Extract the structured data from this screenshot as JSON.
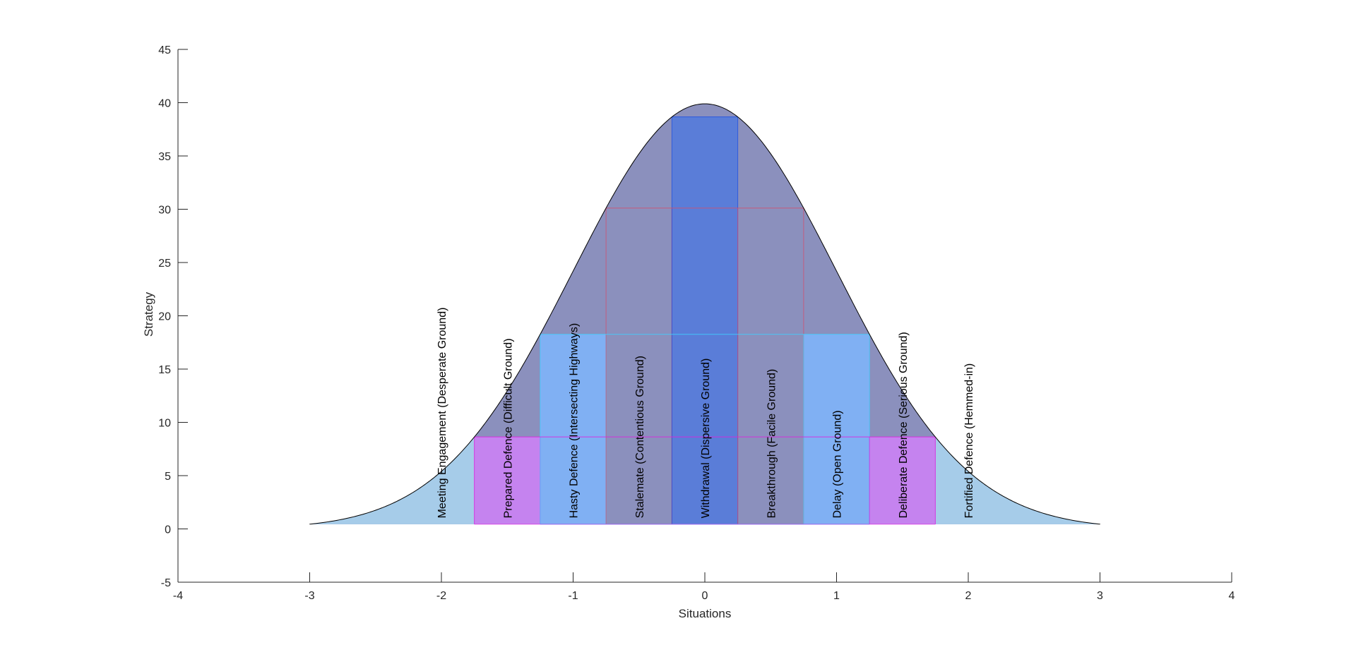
{
  "chart_data": {
    "type": "area",
    "title": "",
    "xlabel": "Situations",
    "ylabel": "Strategy",
    "xlim": [
      -4,
      4
    ],
    "ylim": [
      -5,
      45
    ],
    "x_ticks": [
      -4,
      -3,
      -2,
      -1,
      0,
      1,
      2,
      3,
      4
    ],
    "y_ticks": [
      -5,
      0,
      5,
      10,
      15,
      20,
      25,
      30,
      35,
      40,
      45
    ],
    "grid": false,
    "curve": {
      "description": "normal density scaled by 100 (mean 0, sd 1), plotted from x=-3 to x=3, baseline at y=0.44",
      "x_range": [
        -3,
        3
      ],
      "peak_y": 39.9,
      "baseline_y": 0.44
    },
    "bands": [
      {
        "label": "Meeting Engagement (Desperate Ground)",
        "x_range": [
          -3,
          -1.75
        ],
        "level": 0.44,
        "color": "#a6cce9",
        "edge": "#a6cce9"
      },
      {
        "label": "Prepared Defence (Difficult Ground)",
        "x_range": [
          -1.75,
          -1.25
        ],
        "level": 8.63,
        "color": "#c583ef",
        "edge": "#e020e0"
      },
      {
        "label": "Hasty Defence (Intersecting Highways)",
        "x_range": [
          -1.25,
          -0.75
        ],
        "level": 18.26,
        "color": "#80b0f3",
        "edge": "#40d0ff"
      },
      {
        "label": "Stalemate (Contentious Ground)",
        "x_range": [
          -0.75,
          -0.25
        ],
        "level": 30.11,
        "color": "#8b90bd",
        "edge": "#d05070"
      },
      {
        "label": "Withdrawal (Dispersive Ground)",
        "x_range": [
          -0.25,
          0.25
        ],
        "level": 38.67,
        "color": "#5a7dd8",
        "edge": "#2050e0"
      },
      {
        "label": "Breakthrough (Facile Ground)",
        "x_range": [
          0.25,
          0.75
        ],
        "level": 30.11,
        "color": "#8b90bd",
        "edge": "#d05070"
      },
      {
        "label": "Delay (Open Ground)",
        "x_range": [
          0.75,
          1.25
        ],
        "level": 18.26,
        "color": "#80b0f3",
        "edge": "#40d0ff"
      },
      {
        "label": "Deliberate Defence (Serious Ground)",
        "x_range": [
          1.25,
          1.75
        ],
        "level": 8.63,
        "color": "#c583ef",
        "edge": "#e020e0"
      },
      {
        "label": "Fortified Defence (Hemmed-in)",
        "x_range": [
          1.75,
          3
        ],
        "level": 0.44,
        "color": "#a6cce9",
        "edge": "#a6cce9"
      }
    ],
    "label_x": [
      -2,
      -1.5,
      -1,
      -0.5,
      0,
      0.5,
      1,
      1.5,
      2
    ],
    "label_baseline_y": 1
  }
}
